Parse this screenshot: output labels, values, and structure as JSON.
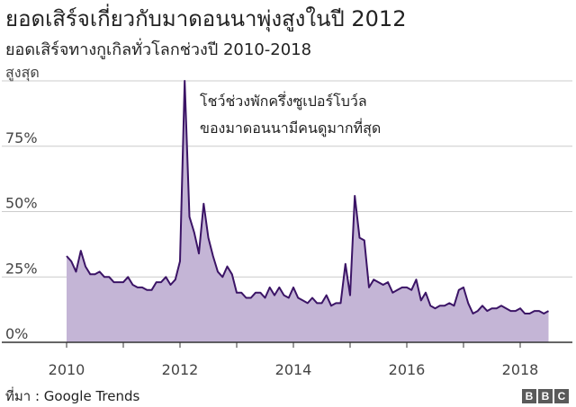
{
  "title": "ยอดเสิร์จเกี่ยวกับมาดอนนาพุ่งสูงในปี 2012",
  "subtitle": "ยอดเสิร์จทางกูเกิลทั่วโลกช่วงปี 2010-2018",
  "source": "ที่มา : Google Trends",
  "logo": [
    "B",
    "B",
    "C"
  ],
  "annotation": [
    "โชว์ช่วงพักครึ่งซูเปอร์โบว์ล",
    "ของมาดอนนามีคนดูมากที่สุด"
  ],
  "colors": {
    "line": "#3b1466",
    "area": "#c4b5d6",
    "grid": "#cccccc",
    "axis": "#333333"
  },
  "chart_data": {
    "type": "area",
    "title": "ยอดเสิร์จเกี่ยวกับมาดอนนาพุ่งสูงในปี 2012",
    "xlabel": "",
    "ylabel": "",
    "ylim": [
      0,
      100
    ],
    "xlim": [
      2010,
      2019
    ],
    "grid": true,
    "y_ticks": [
      {
        "value": 100,
        "label": "สูงสุด"
      },
      {
        "value": 75,
        "label": "75%"
      },
      {
        "value": 50,
        "label": "50%"
      },
      {
        "value": 25,
        "label": "25%"
      },
      {
        "value": 0,
        "label": "0%"
      }
    ],
    "x_ticks": [
      {
        "value": 2010,
        "label": "2010"
      },
      {
        "value": 2012,
        "label": "2012"
      },
      {
        "value": 2014,
        "label": "2014"
      },
      {
        "value": 2016,
        "label": "2016"
      },
      {
        "value": 2018,
        "label": "2018"
      }
    ],
    "x": [
      2010.0,
      2010.083,
      2010.167,
      2010.25,
      2010.333,
      2010.417,
      2010.5,
      2010.583,
      2010.667,
      2010.75,
      2010.833,
      2010.917,
      2011.0,
      2011.083,
      2011.167,
      2011.25,
      2011.333,
      2011.417,
      2011.5,
      2011.583,
      2011.667,
      2011.75,
      2011.833,
      2011.917,
      2012.0,
      2012.083,
      2012.167,
      2012.25,
      2012.333,
      2012.417,
      2012.5,
      2012.583,
      2012.667,
      2012.75,
      2012.833,
      2012.917,
      2013.0,
      2013.083,
      2013.167,
      2013.25,
      2013.333,
      2013.417,
      2013.5,
      2013.583,
      2013.667,
      2013.75,
      2013.833,
      2013.917,
      2014.0,
      2014.083,
      2014.167,
      2014.25,
      2014.333,
      2014.417,
      2014.5,
      2014.583,
      2014.667,
      2014.75,
      2014.833,
      2014.917,
      2015.0,
      2015.083,
      2015.167,
      2015.25,
      2015.333,
      2015.417,
      2015.5,
      2015.583,
      2015.667,
      2015.75,
      2015.833,
      2015.917,
      2016.0,
      2016.083,
      2016.167,
      2016.25,
      2016.333,
      2016.417,
      2016.5,
      2016.583,
      2016.667,
      2016.75,
      2016.833,
      2016.917,
      2017.0,
      2017.083,
      2017.167,
      2017.25,
      2017.333,
      2017.417,
      2017.5,
      2017.583,
      2017.667,
      2017.75,
      2017.833,
      2017.917,
      2018.0,
      2018.083,
      2018.167,
      2018.25,
      2018.333,
      2018.417,
      2018.5
    ],
    "series": [
      {
        "values": [
          33,
          31,
          27,
          35,
          29,
          26,
          26,
          27,
          25,
          25,
          23,
          23,
          23,
          25,
          22,
          21,
          21,
          20,
          20,
          23,
          23,
          25,
          22,
          24,
          31,
          100,
          48,
          42,
          34,
          53,
          40,
          33,
          27,
          25,
          29,
          26,
          19,
          19,
          17,
          17,
          19,
          19,
          17,
          21,
          18,
          21,
          18,
          17,
          21,
          17,
          16,
          15,
          17,
          15,
          15,
          18,
          14,
          15,
          15,
          30,
          18,
          56,
          40,
          39,
          21,
          24,
          23,
          22,
          23,
          19,
          20,
          21,
          21,
          20,
          24,
          16,
          19,
          14,
          13,
          14,
          14,
          15,
          14,
          20,
          21,
          15,
          11,
          12,
          14,
          12,
          13,
          13,
          14,
          13,
          12,
          12,
          13,
          11,
          11,
          12,
          12,
          11,
          12
        ]
      }
    ]
  }
}
